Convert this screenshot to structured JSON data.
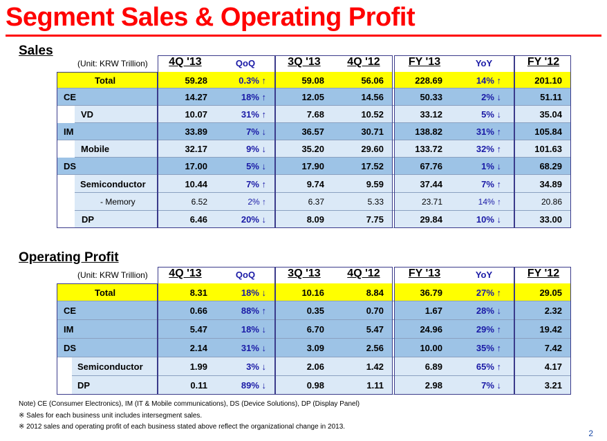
{
  "title": "Segment Sales & Operating Profit",
  "colors": {
    "title_red": "#ff0000",
    "total_yellow": "#ffff00",
    "row_blue": "#9dc3e6",
    "row_light": "#dbe9f7"
  },
  "sales": {
    "section_title": "Sales",
    "unit": "(Unit: KRW Trillion)",
    "headers": [
      "4Q '13",
      "QoQ",
      "3Q '13",
      "4Q '12",
      "FY '13",
      "YoY",
      "FY '12"
    ],
    "rows": [
      {
        "label": "Total",
        "values": [
          "59.28",
          "0.3% ↑",
          "59.08",
          "56.06",
          "228.69",
          "14% ↑",
          "201.10"
        ]
      },
      {
        "label": "CE",
        "values": [
          "14.27",
          "18% ↑",
          "12.05",
          "14.56",
          "50.33",
          "2% ↓",
          "51.11"
        ]
      },
      {
        "label": "VD",
        "values": [
          "10.07",
          "31% ↑",
          "7.68",
          "10.52",
          "33.12",
          "5% ↓",
          "35.04"
        ]
      },
      {
        "label": "IM",
        "values": [
          "33.89",
          "7% ↓",
          "36.57",
          "30.71",
          "138.82",
          "31% ↑",
          "105.84"
        ]
      },
      {
        "label": "Mobile",
        "values": [
          "32.17",
          "9% ↓",
          "35.20",
          "29.60",
          "133.72",
          "32% ↑",
          "101.63"
        ]
      },
      {
        "label": "DS",
        "values": [
          "17.00",
          "5% ↓",
          "17.90",
          "17.52",
          "67.76",
          "1% ↓",
          "68.29"
        ]
      },
      {
        "label": "Semiconductor",
        "values": [
          "10.44",
          "7% ↑",
          "9.74",
          "9.59",
          "37.44",
          "7% ↑",
          "34.89"
        ]
      },
      {
        "label": "- Memory",
        "values": [
          "6.52",
          "2% ↑",
          "6.37",
          "5.33",
          "23.71",
          "14% ↑",
          "20.86"
        ]
      },
      {
        "label": "DP",
        "values": [
          "6.46",
          "20% ↓",
          "8.09",
          "7.75",
          "29.84",
          "10% ↓",
          "33.00"
        ]
      }
    ]
  },
  "op": {
    "section_title": "Operating Profit",
    "unit": "(Unit: KRW Trillion)",
    "headers": [
      "4Q '13",
      "QoQ",
      "3Q '13",
      "4Q '12",
      "FY '13",
      "YoY",
      "FY '12"
    ],
    "rows": [
      {
        "label": "Total",
        "values": [
          "8.31",
          "18% ↓",
          "10.16",
          "8.84",
          "36.79",
          "27% ↑",
          "29.05"
        ]
      },
      {
        "label": "CE",
        "values": [
          "0.66",
          "88% ↑",
          "0.35",
          "0.70",
          "1.67",
          "28% ↓",
          "2.32"
        ]
      },
      {
        "label": "IM",
        "values": [
          "5.47",
          "18% ↓",
          "6.70",
          "5.47",
          "24.96",
          "29% ↑",
          "19.42"
        ]
      },
      {
        "label": "DS",
        "values": [
          "2.14",
          "31% ↓",
          "3.09",
          "2.56",
          "10.00",
          "35% ↑",
          "7.42"
        ]
      },
      {
        "label": "Semiconductor",
        "values": [
          "1.99",
          "3% ↓",
          "2.06",
          "1.42",
          "6.89",
          "65% ↑",
          "4.17"
        ]
      },
      {
        "label": "DP",
        "values": [
          "0.11",
          "89% ↓",
          "0.98",
          "1.11",
          "2.98",
          "7% ↓",
          "3.21"
        ]
      }
    ]
  },
  "notes": [
    "Note) CE (Consumer Electronics), IM (IT & Mobile communications),  DS (Device Solutions), DP (Display Panel)",
    "※ Sales for each business unit includes intersegment sales.",
    "※ 2012 sales and operating profit of each business stated above reflect the organizational change in 2013."
  ],
  "page_number": "2"
}
